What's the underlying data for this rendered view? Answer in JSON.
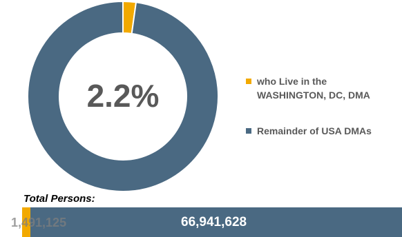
{
  "chart_data": {
    "type": "pie",
    "donut": true,
    "center_label": "2.2%",
    "series": [
      {
        "name": "who Live in the\nWASHINGTON, DC, DMA",
        "value": 2.2,
        "color": "#f2a900"
      },
      {
        "name": "Remainder of USA DMAs",
        "value": 97.8,
        "color": "#4a6982"
      }
    ],
    "legend_position": "right"
  },
  "totals": {
    "label": "Total Persons:",
    "dma_value": "1,491,125",
    "remainder_value": "66,941,628",
    "dma_share": 0.022,
    "colors": {
      "dma": "#f2a900",
      "remainder": "#4a6982"
    }
  }
}
